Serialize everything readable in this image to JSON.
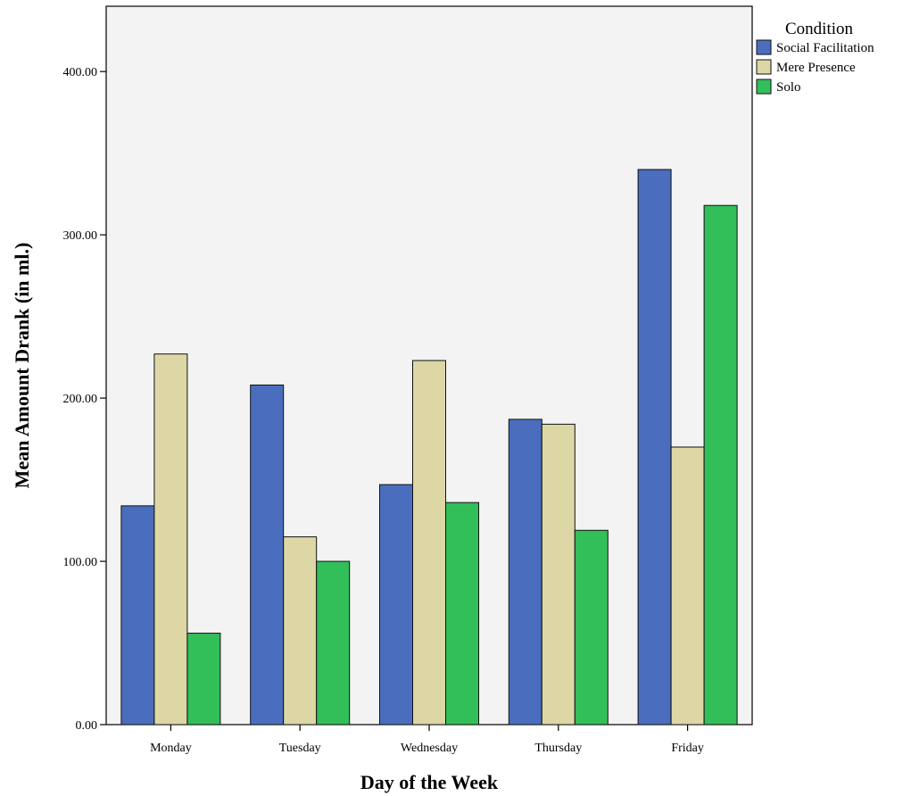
{
  "chart_data": {
    "type": "bar",
    "title": "",
    "xlabel": "Day of the Week",
    "ylabel": "Mean Amount Drank (in ml.)",
    "categories": [
      "Monday",
      "Tuesday",
      "Wednesday",
      "Thursday",
      "Friday"
    ],
    "ylim": [
      0,
      440
    ],
    "yticks": [
      0,
      100,
      200,
      300,
      400
    ],
    "ytick_labels": [
      "0.00",
      "100.00",
      "200.00",
      "300.00",
      "400.00"
    ],
    "grid": false,
    "legend": {
      "title": "Condition",
      "placement": "right"
    },
    "series": [
      {
        "name": "Social Facilitation",
        "color": "#4a6ebd",
        "values": [
          134,
          208,
          147,
          187,
          340
        ]
      },
      {
        "name": "Mere Presence",
        "color": "#ddd7a6",
        "values": [
          227,
          115,
          223,
          184,
          170
        ]
      },
      {
        "name": "Solo",
        "color": "#32be59",
        "values": [
          56,
          100,
          136,
          119,
          318
        ]
      }
    ]
  },
  "colors": {
    "plot_background": "#f3f3f3",
    "bar_stroke": "#111111"
  }
}
